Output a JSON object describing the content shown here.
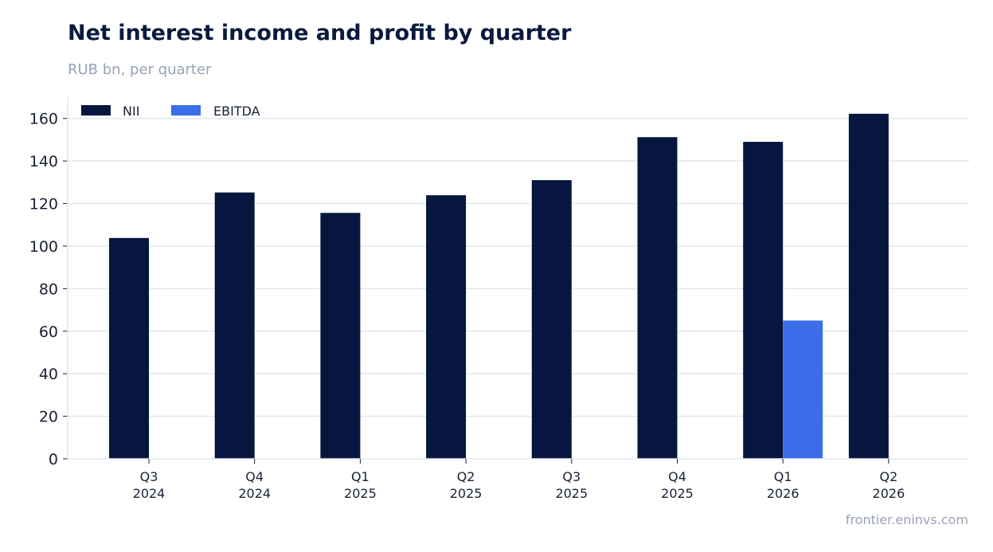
{
  "header": {
    "title": "Net interest income and profit by quarter",
    "subtitle": "RUB bn, per quarter"
  },
  "footer": {
    "source": "frontier.eninvs.com"
  },
  "colors": {
    "NII": "#06163f",
    "EBITDA": "#3b6ee8",
    "grid": "#e3e7ee",
    "axis": "#c9ced8",
    "text": "#1a2233",
    "muted": "#97a3b6"
  },
  "chart_data": {
    "type": "bar",
    "title": "Net interest income and profit by quarter",
    "subtitle": "RUB bn, per quarter",
    "categories": [
      [
        "Q3",
        "2024"
      ],
      [
        "Q4",
        "2024"
      ],
      [
        "Q1",
        "2025"
      ],
      [
        "Q2",
        "2025"
      ],
      [
        "Q3",
        "2025"
      ],
      [
        "Q4",
        "2025"
      ],
      [
        "Q1",
        "2026"
      ],
      [
        "Q2",
        "2026"
      ]
    ],
    "series": [
      {
        "name": "NII",
        "values": [
          103.8,
          125.2,
          115.6,
          123.9,
          131.0,
          151.2,
          149.0,
          162.2
        ]
      },
      {
        "name": "EBITDA",
        "values": [
          null,
          null,
          null,
          null,
          null,
          null,
          65.0,
          null
        ]
      }
    ],
    "yticks": [
      0,
      20,
      40,
      60,
      80,
      100,
      120,
      140,
      160
    ],
    "ylim": [
      0,
      170
    ],
    "legend": "top-left",
    "grid": true
  }
}
